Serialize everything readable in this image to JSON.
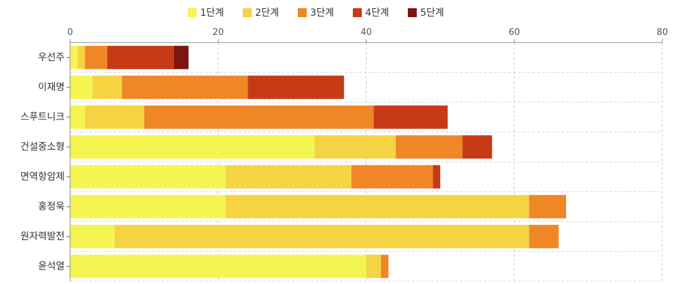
{
  "chart_data": {
    "type": "bar",
    "orientation": "horizontal",
    "stacked": true,
    "title": "",
    "xlabel": "",
    "ylabel": "",
    "xlim": [
      0,
      80
    ],
    "x_ticks": [
      0,
      20,
      40,
      60,
      80
    ],
    "grid": true,
    "legend_position": "top",
    "categories": [
      "우선주",
      "이재명",
      "스푸트니크",
      "건설중소형",
      "면역항암제",
      "홍정욱",
      "원자력발전",
      "윤석열"
    ],
    "series": [
      {
        "name": "1단계",
        "color": "#f5f552",
        "values": [
          1,
          3,
          2,
          33,
          21,
          21,
          6,
          40
        ]
      },
      {
        "name": "2단계",
        "color": "#f4d443",
        "values": [
          1,
          4,
          8,
          11,
          17,
          41,
          56,
          2
        ]
      },
      {
        "name": "3단계",
        "color": "#ef8726",
        "values": [
          3,
          17,
          31,
          9,
          11,
          5,
          4,
          1
        ]
      },
      {
        "name": "4단계",
        "color": "#c73a16",
        "values": [
          9,
          13,
          10,
          4,
          1,
          0,
          0,
          0
        ]
      },
      {
        "name": "5단계",
        "color": "#7b1710",
        "values": [
          2,
          0,
          0,
          0,
          0,
          0,
          0,
          0
        ]
      }
    ]
  }
}
